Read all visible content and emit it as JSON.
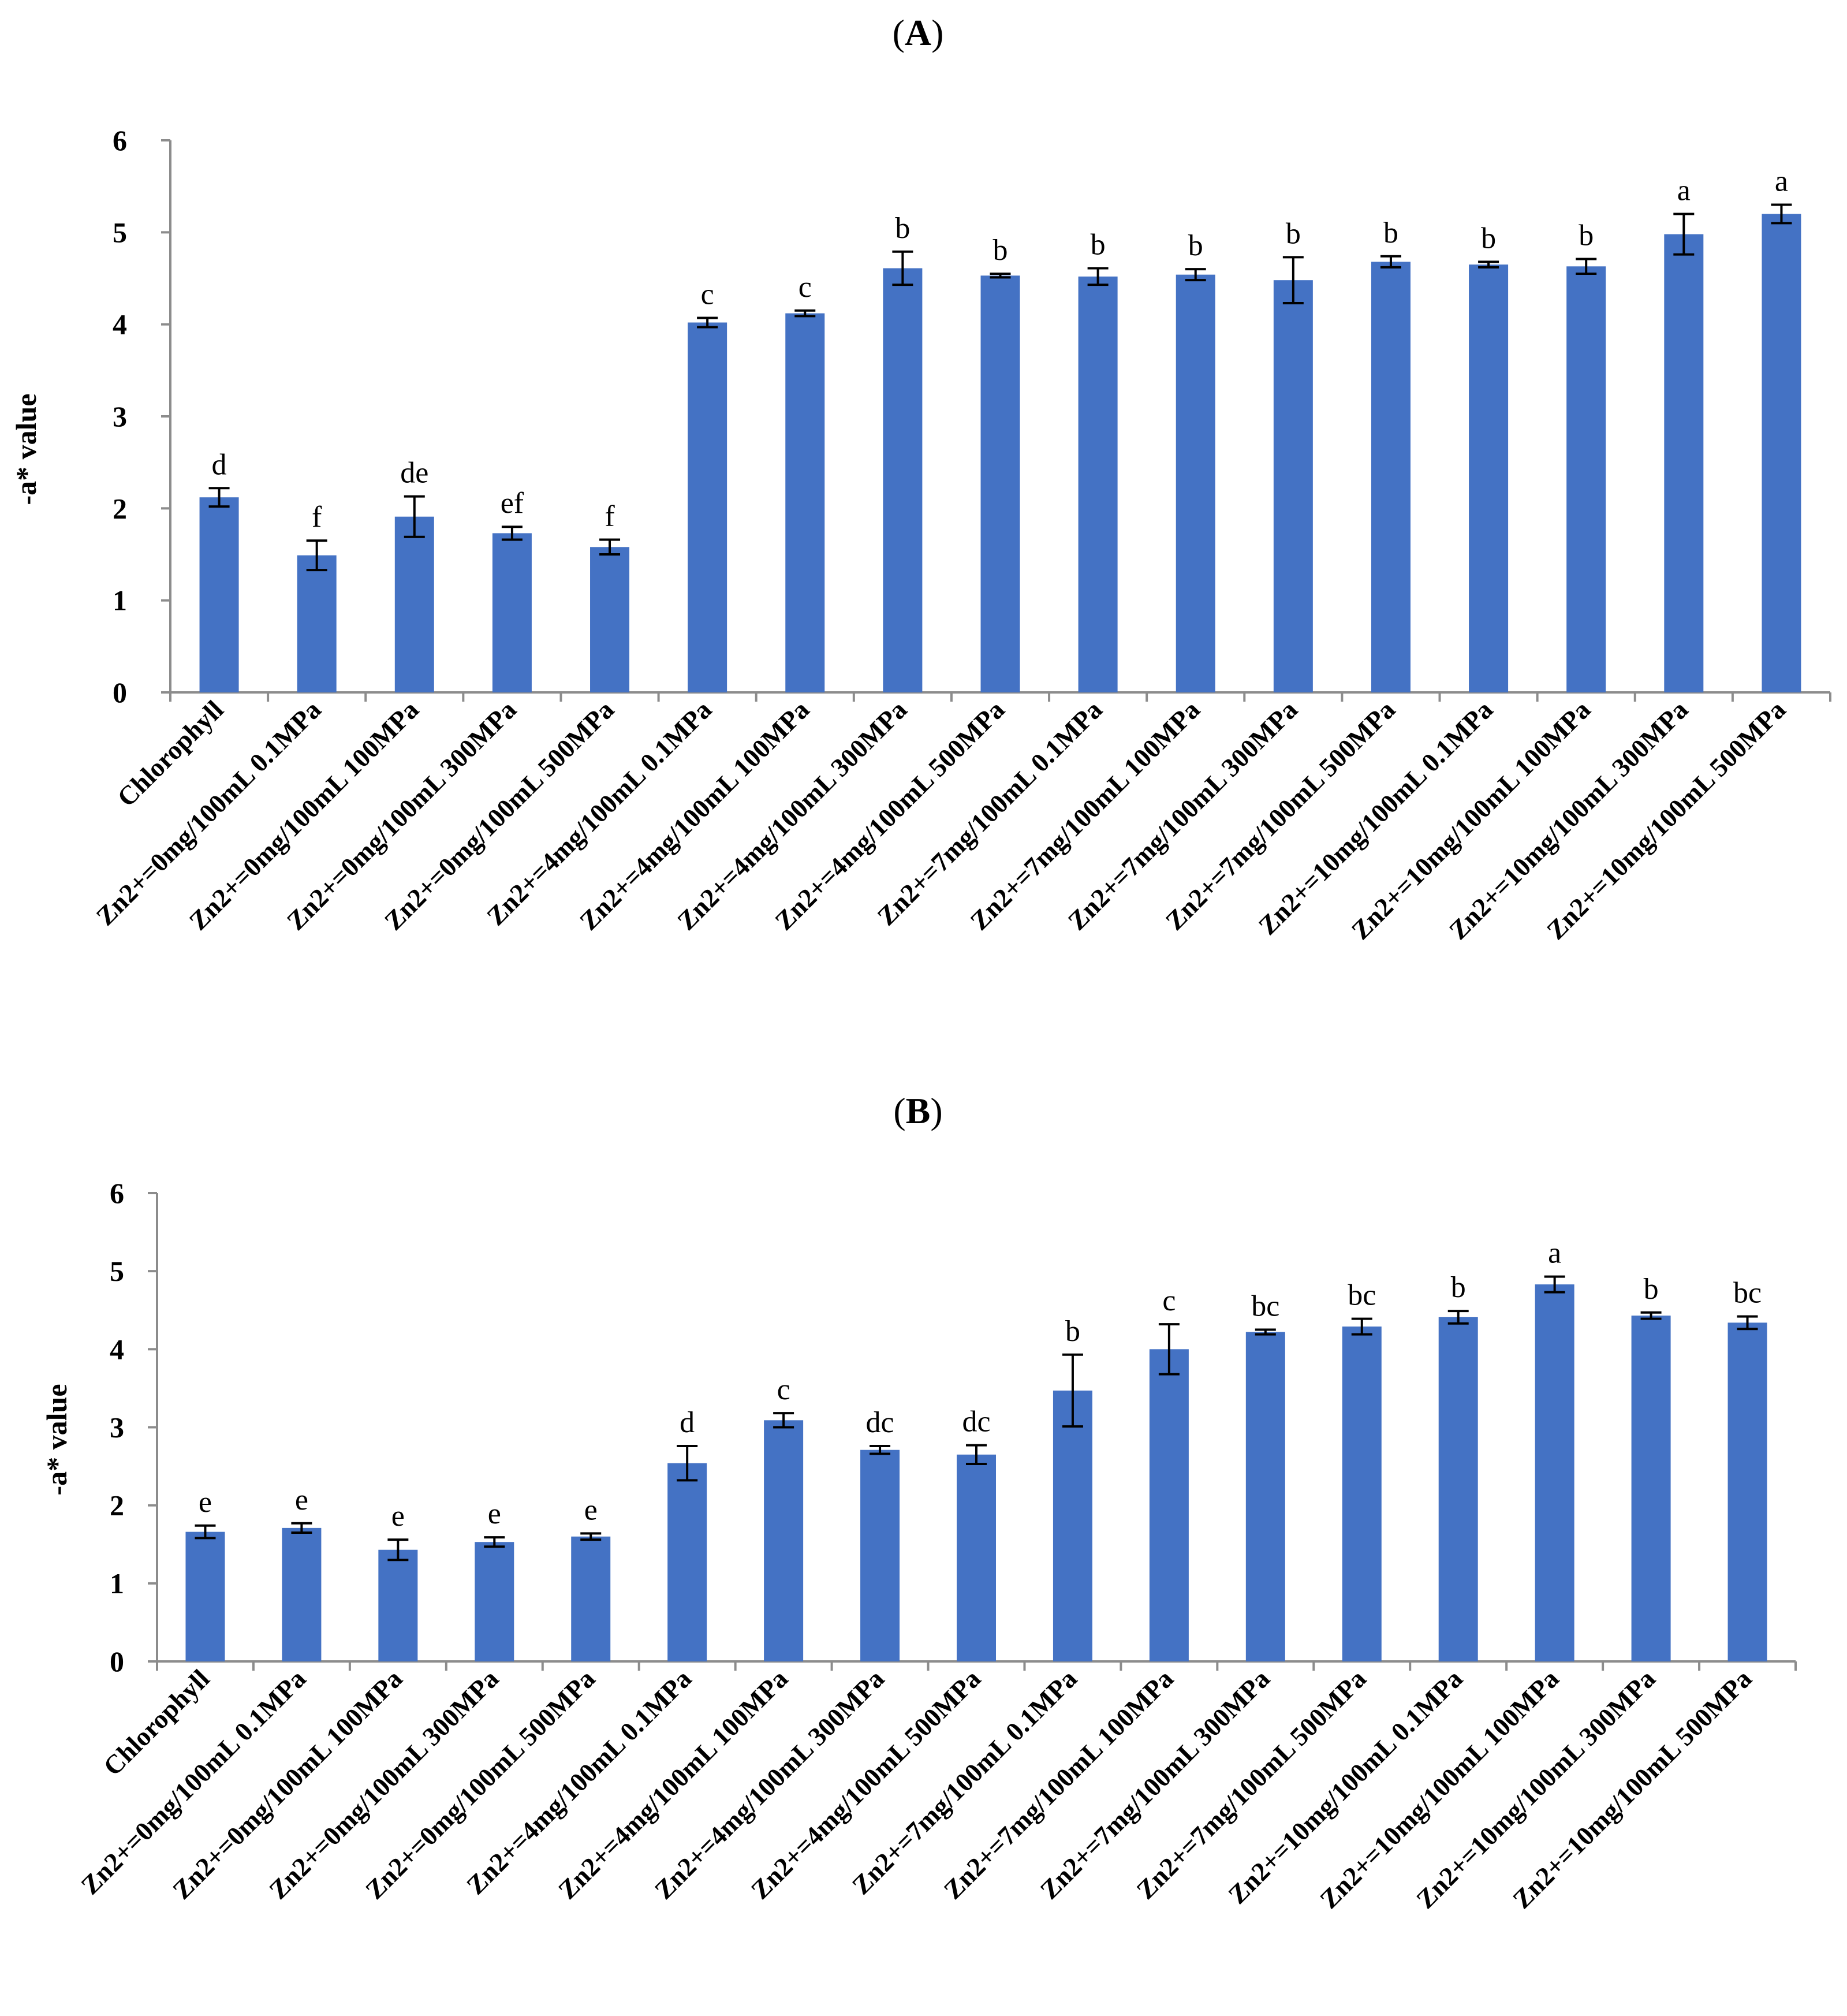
{
  "figure": {
    "colors": {
      "bar": "#4472C4",
      "axis": "#8C8C8C",
      "text": "#000000"
    }
  },
  "chart_data": [
    {
      "type": "bar",
      "title_open": "(",
      "title": "A",
      "title_close": ")",
      "xlabel": "",
      "ylabel": "-a* value",
      "ylim": [
        0,
        6
      ],
      "yticks": [
        0,
        1,
        2,
        3,
        4,
        5,
        6
      ],
      "categories": [
        "Chlorophyll",
        "Zn2+=0mg/100mL 0.1MPa",
        "Zn2+=0mg/100mL 100MPa",
        "Zn2+=0mg/100mL 300MPa",
        "Zn2+=0mg/100mL 500MPa",
        "Zn2+=4mg/100mL 0.1MPa",
        "Zn2+=4mg/100mL 100MPa",
        "Zn2+=4mg/100mL 300MPa",
        "Zn2+=4mg/100mL 500MPa",
        "Zn2+=7mg/100mL 0.1MPa",
        "Zn2+=7mg/100mL 100MPa",
        "Zn2+=7mg/100mL 300MPa",
        "Zn2+=7mg/100mL 500MPa",
        "Zn2+=10mg/100mL 0.1MPa",
        "Zn2+=10mg/100mL 100MPa",
        "Zn2+=10mg/100mL 300MPa",
        "Zn2+=10mg/100mL 500MPa"
      ],
      "values": [
        2.12,
        1.49,
        1.91,
        1.73,
        1.58,
        4.02,
        4.12,
        4.61,
        4.53,
        4.52,
        4.54,
        4.48,
        4.68,
        4.65,
        4.63,
        4.98,
        5.2
      ],
      "errors": [
        0.1,
        0.16,
        0.22,
        0.07,
        0.08,
        0.05,
        0.03,
        0.18,
        0.02,
        0.09,
        0.06,
        0.25,
        0.06,
        0.03,
        0.08,
        0.22,
        0.1
      ],
      "sig_labels": [
        "d",
        "f",
        "de",
        "ef",
        "f",
        "c",
        "c",
        "b",
        "b",
        "b",
        "b",
        "b",
        "b",
        "b",
        "b",
        "a",
        "a"
      ]
    },
    {
      "type": "bar",
      "title_open": "(",
      "title": "B",
      "title_close": ")",
      "xlabel": "",
      "ylabel": "-a* value",
      "ylim": [
        0,
        6
      ],
      "yticks": [
        0,
        1,
        2,
        3,
        4,
        5,
        6
      ],
      "categories": [
        "Chlorophyll",
        "Zn2+=0mg/100mL 0.1MPa",
        "Zn2+=0mg/100mL 100MPa",
        "Zn2+=0mg/100mL 300MPa",
        "Zn2+=0mg/100mL 500MPa",
        "Zn2+=4mg/100mL 0.1MPa",
        "Zn2+=4mg/100mL 100MPa",
        "Zn2+=4mg/100mL 300MPa",
        "Zn2+=4mg/100mL 500MPa",
        "Zn2+=7mg/100mL 0.1MPa",
        "Zn2+=7mg/100mL 100MPa",
        "Zn2+=7mg/100mL 300MPa",
        "Zn2+=7mg/100mL 500MPa",
        "Zn2+=10mg/100mL 0.1MPa",
        "Zn2+=10mg/100mL 100MPa",
        "Zn2+=10mg/100mL 300MPa",
        "Zn2+=10mg/100mL 500MPa"
      ],
      "values": [
        1.66,
        1.71,
        1.43,
        1.53,
        1.6,
        2.54,
        3.09,
        2.71,
        2.65,
        3.47,
        4.0,
        4.22,
        4.29,
        4.41,
        4.83,
        4.43,
        4.34
      ],
      "errors": [
        0.08,
        0.06,
        0.13,
        0.06,
        0.04,
        0.22,
        0.09,
        0.05,
        0.12,
        0.46,
        0.32,
        0.03,
        0.1,
        0.08,
        0.1,
        0.04,
        0.08
      ],
      "sig_labels": [
        "e",
        "e",
        "e",
        "e",
        "e",
        "d",
        "c",
        "dc",
        "dc",
        "b",
        "c",
        "bc",
        "bc",
        "b",
        "a",
        "b",
        "bc"
      ]
    }
  ]
}
